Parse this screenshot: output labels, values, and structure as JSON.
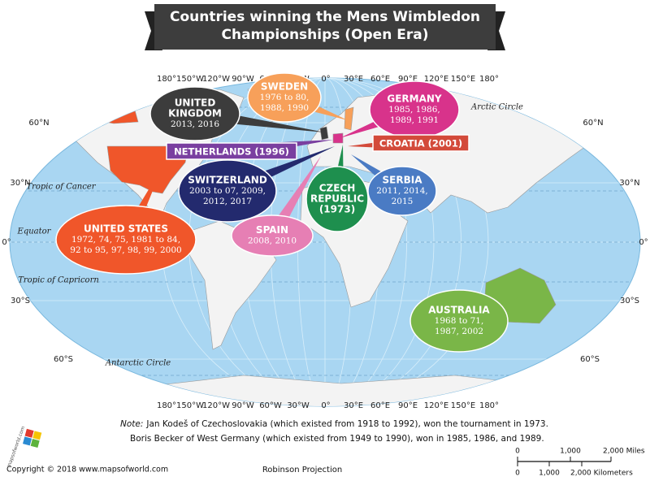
{
  "header": {
    "title_lines": [
      "Countries winning the Mens Wimbledon",
      "Championships (Open Era)"
    ]
  },
  "longitudes": [
    "180°",
    "150°W",
    "120°W",
    "90°W",
    "60°W",
    "30°W",
    "0°",
    "30°E",
    "60°E",
    "90°E",
    "120°E",
    "150°E",
    "180°"
  ],
  "latitudes": [
    "60°N",
    "30°N",
    "0°",
    "30°S",
    "60°S"
  ],
  "circles": [
    "Arctic Circle",
    "Tropic of Cancer",
    "Equator",
    "Tropic of Capricorn",
    "Antarctic Circle"
  ],
  "callouts": [
    {
      "name": [
        "UNITED",
        "KINGDOM"
      ],
      "years": [
        "2013,  2016"
      ]
    },
    {
      "name": [
        "SWEDEN"
      ],
      "years": [
        "1976 to 80,",
        "1988, 1990"
      ]
    },
    {
      "name": [
        "GERMANY"
      ],
      "years": [
        "1985, 1986,",
        "1989, 1991"
      ]
    },
    {
      "label": "NETHERLANDS (1996)"
    },
    {
      "label": "CROATIA (2001)"
    },
    {
      "name": [
        "SWITZERLAND"
      ],
      "years": [
        "2003 to 07, 2009,",
        "2012, 2017"
      ]
    },
    {
      "name": [
        "CZECH",
        "REPUBLIC",
        "(1973)"
      ]
    },
    {
      "name": [
        "SERBIA"
      ],
      "years": [
        "2011, 2014,",
        "2015"
      ]
    },
    {
      "name": [
        "SPAIN"
      ],
      "years": [
        "2008, 2010"
      ]
    },
    {
      "name": [
        "UNITED STATES"
      ],
      "years": [
        "1972, 74, 75, 1981 to 84,",
        "92 to 95,  97, 98, 99, 2000"
      ]
    },
    {
      "name": [
        "AUSTRALIA"
      ],
      "years": [
        "1968 to 71,",
        "1987, 2002"
      ]
    }
  ],
  "note": {
    "label": "Note:",
    "lines": [
      "Jan Kodeš of Czechoslovakia (which existed from 1918 to 1992), won the tournament in 1973.",
      "Boris Becker of West Germany (which existed from 1949 to 1990), won in 1985, 1986, and 1989."
    ]
  },
  "footer": {
    "copyright": "Copyright © 2018 www.mapsofworld.com",
    "projection": "Robinson Projection",
    "logo": "mapsofworld.com"
  },
  "scale": {
    "miles": [
      "0",
      "1,000",
      "2,000 Miles"
    ],
    "kilometers": [
      "0",
      "1,000",
      "2,000 Kilometers"
    ]
  }
}
